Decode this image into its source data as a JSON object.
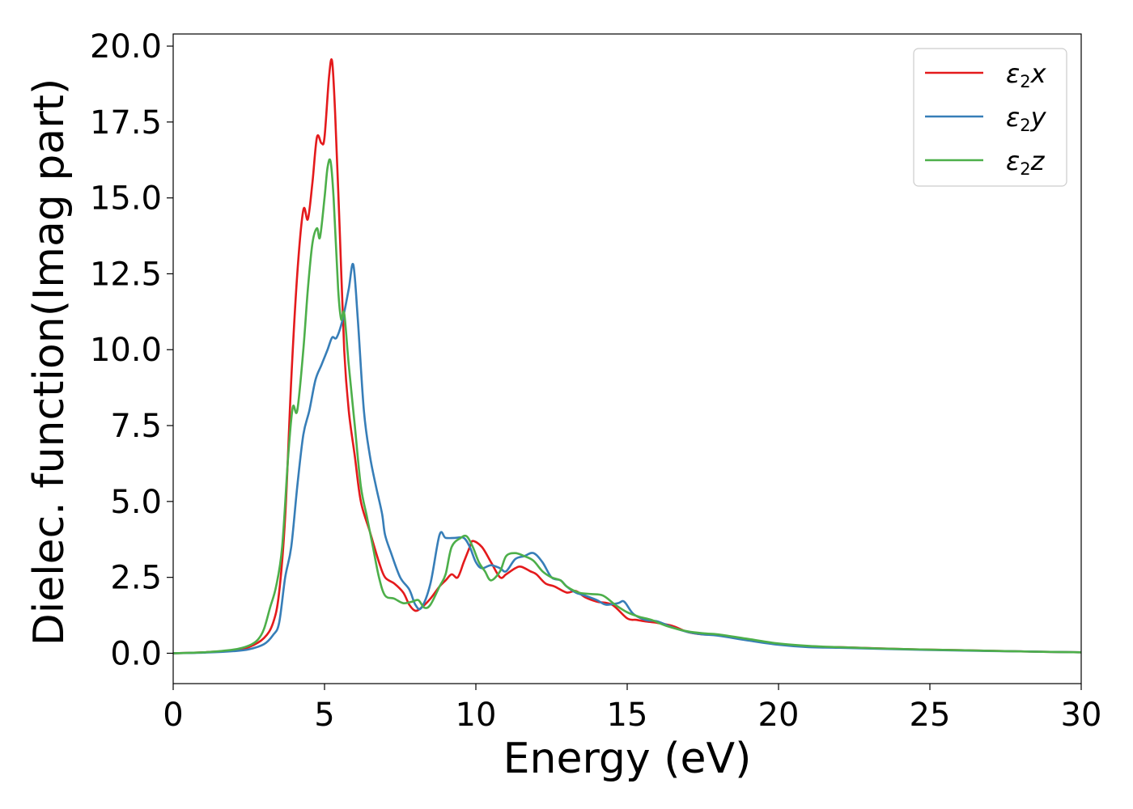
{
  "chart_data": {
    "type": "line",
    "title": "",
    "xlabel": "Energy (eV)",
    "ylabel": "Dielec. function(Imag part)",
    "xlim": [
      0,
      30
    ],
    "ylim": [
      -1.0,
      20.4
    ],
    "xticks": [
      0,
      5,
      10,
      15,
      20,
      25,
      30
    ],
    "xtick_labels": [
      "0",
      "5",
      "10",
      "15",
      "20",
      "25",
      "30"
    ],
    "yticks": [
      0,
      2.5,
      5,
      7.5,
      10,
      12.5,
      15,
      17.5,
      20
    ],
    "ytick_labels": [
      "0.0",
      "2.5",
      "5.0",
      "7.5",
      "10.0",
      "12.5",
      "15.0",
      "17.5",
      "20.0"
    ],
    "grid": false,
    "legend_position": "top-right",
    "series": [
      {
        "name": "ε2x",
        "legend": {
          "base": "ε",
          "sub": "2",
          "suffix": "x"
        },
        "color": "#e41a1c",
        "points": [
          [
            0,
            0
          ],
          [
            1,
            0.03
          ],
          [
            2,
            0.1
          ],
          [
            2.5,
            0.2
          ],
          [
            3,
            0.5
          ],
          [
            3.3,
            1.0
          ],
          [
            3.5,
            2.0
          ],
          [
            3.7,
            4.5
          ],
          [
            3.9,
            9.0
          ],
          [
            4.1,
            12.5
          ],
          [
            4.3,
            14.6
          ],
          [
            4.45,
            14.3
          ],
          [
            4.6,
            15.5
          ],
          [
            4.75,
            17.0
          ],
          [
            4.9,
            16.8
          ],
          [
            5.0,
            17.0
          ],
          [
            5.15,
            19.0
          ],
          [
            5.25,
            19.5
          ],
          [
            5.35,
            17.8
          ],
          [
            5.5,
            14.0
          ],
          [
            5.65,
            10.0
          ],
          [
            5.8,
            8.0
          ],
          [
            6.0,
            6.5
          ],
          [
            6.2,
            5.0
          ],
          [
            6.5,
            4.0
          ],
          [
            6.8,
            3.0
          ],
          [
            7.0,
            2.5
          ],
          [
            7.3,
            2.3
          ],
          [
            7.6,
            2.0
          ],
          [
            7.8,
            1.6
          ],
          [
            8.0,
            1.4
          ],
          [
            8.2,
            1.5
          ],
          [
            8.5,
            1.8
          ],
          [
            8.8,
            2.2
          ],
          [
            9.0,
            2.4
          ],
          [
            9.2,
            2.6
          ],
          [
            9.4,
            2.5
          ],
          [
            9.6,
            3.0
          ],
          [
            9.8,
            3.5
          ],
          [
            9.9,
            3.7
          ],
          [
            10.2,
            3.5
          ],
          [
            10.5,
            3.0
          ],
          [
            10.8,
            2.5
          ],
          [
            11.0,
            2.6
          ],
          [
            11.3,
            2.8
          ],
          [
            11.5,
            2.85
          ],
          [
            11.8,
            2.7
          ],
          [
            12.0,
            2.6
          ],
          [
            12.3,
            2.3
          ],
          [
            12.6,
            2.2
          ],
          [
            13.0,
            2.0
          ],
          [
            13.3,
            2.05
          ],
          [
            13.6,
            1.85
          ],
          [
            14.0,
            1.7
          ],
          [
            14.5,
            1.6
          ],
          [
            15.0,
            1.15
          ],
          [
            15.3,
            1.1
          ],
          [
            15.6,
            1.05
          ],
          [
            16.0,
            1.0
          ],
          [
            16.5,
            0.9
          ],
          [
            17.0,
            0.7
          ],
          [
            17.5,
            0.62
          ],
          [
            18.0,
            0.6
          ],
          [
            19.0,
            0.45
          ],
          [
            20.0,
            0.3
          ],
          [
            21.0,
            0.22
          ],
          [
            22.0,
            0.2
          ],
          [
            24.0,
            0.14
          ],
          [
            26.0,
            0.1
          ],
          [
            28.0,
            0.06
          ],
          [
            30.0,
            0.03
          ]
        ]
      },
      {
        "name": "ε2y",
        "legend": {
          "base": "ε",
          "sub": "2",
          "suffix": "y"
        },
        "color": "#377eb8",
        "points": [
          [
            0,
            0
          ],
          [
            1,
            0.02
          ],
          [
            2,
            0.07
          ],
          [
            2.5,
            0.13
          ],
          [
            3,
            0.3
          ],
          [
            3.3,
            0.6
          ],
          [
            3.5,
            1.0
          ],
          [
            3.7,
            2.5
          ],
          [
            3.9,
            3.5
          ],
          [
            4.1,
            5.5
          ],
          [
            4.3,
            7.2
          ],
          [
            4.5,
            8.0
          ],
          [
            4.7,
            9.0
          ],
          [
            4.9,
            9.5
          ],
          [
            5.1,
            10.0
          ],
          [
            5.25,
            10.4
          ],
          [
            5.4,
            10.4
          ],
          [
            5.6,
            11.0
          ],
          [
            5.8,
            12.0
          ],
          [
            5.95,
            12.8
          ],
          [
            6.1,
            11.0
          ],
          [
            6.3,
            8.0
          ],
          [
            6.5,
            6.5
          ],
          [
            6.7,
            5.5
          ],
          [
            6.9,
            4.6
          ],
          [
            7.0,
            3.9
          ],
          [
            7.2,
            3.3
          ],
          [
            7.5,
            2.5
          ],
          [
            7.8,
            2.1
          ],
          [
            8.0,
            1.6
          ],
          [
            8.2,
            1.5
          ],
          [
            8.5,
            2.3
          ],
          [
            8.8,
            3.9
          ],
          [
            9.0,
            3.8
          ],
          [
            9.3,
            3.8
          ],
          [
            9.6,
            3.8
          ],
          [
            9.8,
            3.5
          ],
          [
            10.0,
            3.0
          ],
          [
            10.2,
            2.8
          ],
          [
            10.5,
            2.9
          ],
          [
            10.8,
            2.8
          ],
          [
            11.0,
            2.7
          ],
          [
            11.3,
            3.1
          ],
          [
            11.6,
            3.2
          ],
          [
            11.9,
            3.3
          ],
          [
            12.2,
            3.0
          ],
          [
            12.5,
            2.5
          ],
          [
            12.8,
            2.4
          ],
          [
            13.0,
            2.2
          ],
          [
            13.3,
            2.0
          ],
          [
            13.6,
            1.9
          ],
          [
            14.0,
            1.75
          ],
          [
            14.3,
            1.6
          ],
          [
            14.7,
            1.65
          ],
          [
            14.9,
            1.7
          ],
          [
            15.2,
            1.3
          ],
          [
            15.6,
            1.1
          ],
          [
            16.0,
            1.05
          ],
          [
            16.5,
            0.85
          ],
          [
            17.0,
            0.7
          ],
          [
            17.5,
            0.62
          ],
          [
            18.0,
            0.58
          ],
          [
            19.0,
            0.42
          ],
          [
            20.0,
            0.28
          ],
          [
            21.0,
            0.2
          ],
          [
            22.0,
            0.18
          ],
          [
            24.0,
            0.13
          ],
          [
            26.0,
            0.09
          ],
          [
            28.0,
            0.06
          ],
          [
            30.0,
            0.03
          ]
        ]
      },
      {
        "name": "ε2z",
        "legend": {
          "base": "ε",
          "sub": "2",
          "suffix": "z"
        },
        "color": "#4daf4a",
        "points": [
          [
            0,
            0
          ],
          [
            1,
            0.03
          ],
          [
            2,
            0.12
          ],
          [
            2.5,
            0.25
          ],
          [
            2.8,
            0.45
          ],
          [
            3.0,
            0.8
          ],
          [
            3.2,
            1.5
          ],
          [
            3.4,
            2.2
          ],
          [
            3.6,
            3.5
          ],
          [
            3.8,
            6.5
          ],
          [
            3.95,
            8.1
          ],
          [
            4.1,
            8.0
          ],
          [
            4.3,
            10.0
          ],
          [
            4.45,
            12.0
          ],
          [
            4.6,
            13.5
          ],
          [
            4.75,
            14.0
          ],
          [
            4.85,
            13.7
          ],
          [
            5.0,
            15.0
          ],
          [
            5.1,
            16.0
          ],
          [
            5.2,
            16.2
          ],
          [
            5.3,
            15.0
          ],
          [
            5.45,
            12.0
          ],
          [
            5.55,
            11.0
          ],
          [
            5.65,
            11.2
          ],
          [
            5.8,
            9.5
          ],
          [
            6.0,
            7.5
          ],
          [
            6.2,
            5.5
          ],
          [
            6.4,
            4.5
          ],
          [
            6.6,
            3.5
          ],
          [
            6.8,
            2.5
          ],
          [
            7.0,
            1.9
          ],
          [
            7.3,
            1.8
          ],
          [
            7.6,
            1.65
          ],
          [
            7.9,
            1.7
          ],
          [
            8.1,
            1.75
          ],
          [
            8.3,
            1.5
          ],
          [
            8.5,
            1.6
          ],
          [
            8.8,
            2.2
          ],
          [
            9.0,
            2.6
          ],
          [
            9.2,
            3.5
          ],
          [
            9.5,
            3.8
          ],
          [
            9.7,
            3.85
          ],
          [
            9.9,
            3.5
          ],
          [
            10.1,
            3.0
          ],
          [
            10.3,
            2.7
          ],
          [
            10.5,
            2.4
          ],
          [
            10.8,
            2.7
          ],
          [
            11.0,
            3.2
          ],
          [
            11.3,
            3.3
          ],
          [
            11.6,
            3.2
          ],
          [
            11.9,
            3.05
          ],
          [
            12.2,
            2.7
          ],
          [
            12.5,
            2.5
          ],
          [
            12.8,
            2.4
          ],
          [
            13.0,
            2.2
          ],
          [
            13.4,
            2.0
          ],
          [
            13.8,
            1.95
          ],
          [
            14.2,
            1.9
          ],
          [
            14.6,
            1.6
          ],
          [
            15.0,
            1.35
          ],
          [
            15.4,
            1.2
          ],
          [
            15.8,
            1.1
          ],
          [
            16.3,
            0.9
          ],
          [
            17.0,
            0.72
          ],
          [
            17.6,
            0.65
          ],
          [
            18.0,
            0.62
          ],
          [
            19.0,
            0.47
          ],
          [
            20.0,
            0.32
          ],
          [
            21.0,
            0.24
          ],
          [
            22.0,
            0.2
          ],
          [
            24.0,
            0.14
          ],
          [
            26.0,
            0.1
          ],
          [
            28.0,
            0.06
          ],
          [
            30.0,
            0.03
          ]
        ]
      }
    ]
  }
}
